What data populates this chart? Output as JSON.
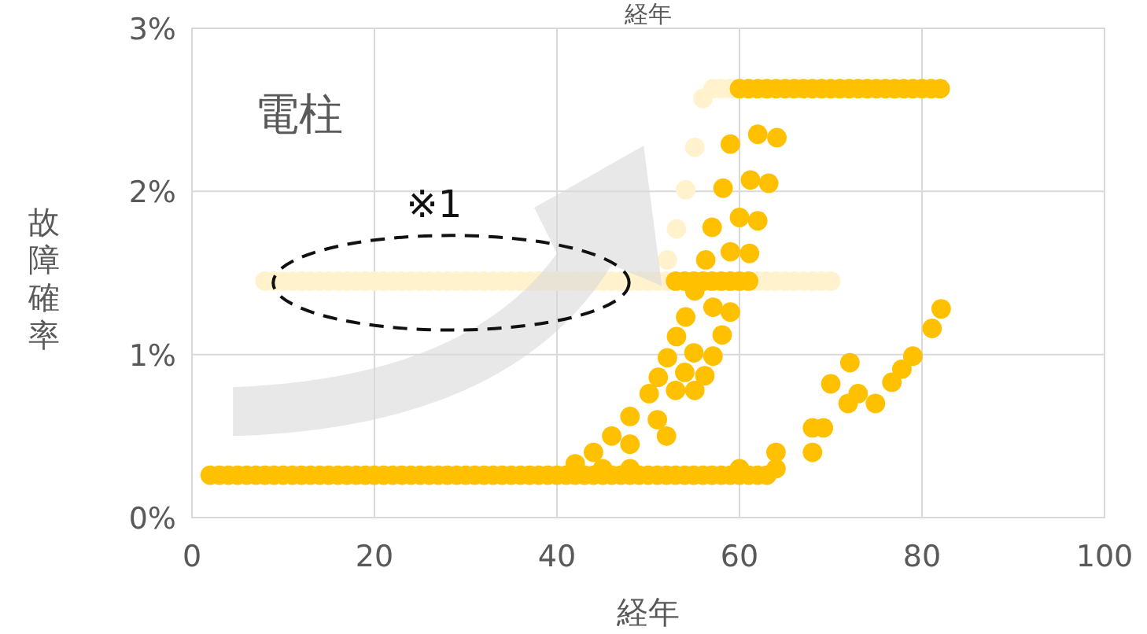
{
  "chart_data": {
    "type": "scatter",
    "title": "経年",
    "xlabel": "経年",
    "ylabel": "故障確率",
    "annotations": [
      "電柱",
      "※1"
    ],
    "xlim": [
      0,
      100
    ],
    "ylim": [
      0,
      3
    ],
    "xticks": [
      0,
      20,
      40,
      60,
      80,
      100
    ],
    "yticks": [
      {
        "value": 0,
        "label": "0%"
      },
      {
        "value": 1,
        "label": "1%"
      },
      {
        "value": 2,
        "label": "2%"
      },
      {
        "value": 3,
        "label": "3%"
      }
    ],
    "grid": true,
    "marker": "circle",
    "series": [
      {
        "color": "#fff2cc",
        "x": [
          8,
          9,
          10,
          11,
          12,
          13,
          14,
          15,
          16,
          17,
          18,
          19,
          20,
          21,
          22,
          23,
          24,
          25,
          26,
          27,
          28,
          29,
          30,
          31,
          32,
          33,
          34,
          35,
          36,
          37,
          38,
          39,
          40,
          41,
          42,
          43,
          44,
          45,
          46,
          47,
          48,
          49,
          50,
          51,
          52,
          62,
          63,
          64,
          65,
          66,
          67,
          68,
          69,
          70,
          52.1,
          53.1,
          54.1,
          55.1,
          56.0,
          57.1,
          58,
          59
        ],
        "values": [
          1.45,
          1.45,
          1.45,
          1.45,
          1.45,
          1.45,
          1.45,
          1.45,
          1.45,
          1.45,
          1.45,
          1.45,
          1.45,
          1.45,
          1.45,
          1.45,
          1.45,
          1.45,
          1.45,
          1.45,
          1.45,
          1.45,
          1.45,
          1.45,
          1.45,
          1.45,
          1.45,
          1.45,
          1.45,
          1.45,
          1.45,
          1.45,
          1.45,
          1.45,
          1.45,
          1.45,
          1.45,
          1.45,
          1.45,
          1.45,
          1.45,
          1.45,
          1.45,
          1.45,
          1.45,
          1.45,
          1.45,
          1.45,
          1.45,
          1.45,
          1.45,
          1.45,
          1.45,
          1.45,
          1.58,
          1.77,
          2.01,
          2.27,
          2.57,
          2.63,
          2.63,
          2.63
        ]
      },
      {
        "color": "#ffc000",
        "x": [
          2,
          3,
          4,
          5,
          6,
          7,
          8,
          9,
          10,
          11,
          12,
          13,
          14,
          15,
          16,
          17,
          18,
          19,
          20,
          21,
          22,
          23,
          24,
          25,
          26,
          27,
          28,
          29,
          30,
          31,
          32,
          33,
          34,
          35,
          36,
          37,
          38,
          39,
          40,
          41,
          42,
          43,
          44,
          45,
          46,
          47,
          48,
          49,
          50,
          51,
          52,
          53,
          54,
          55,
          56,
          57,
          58,
          59,
          60,
          61,
          62,
          63,
          42,
          44,
          46,
          48,
          50.1,
          51.1,
          52.1,
          53.1,
          45,
          48,
          51,
          53.0,
          54.0,
          55.0,
          48,
          52,
          55.1,
          56.2,
          57.1,
          58.1,
          54.1,
          55.1,
          57.1,
          59.0,
          53,
          54,
          55,
          56,
          57,
          58,
          59,
          60,
          61,
          56.3,
          59.0,
          61.1,
          57.0,
          60.0,
          62.0,
          58.2,
          61.2,
          63.2,
          59.0,
          62.0,
          64.1,
          60,
          61,
          62,
          63,
          64,
          65,
          66,
          67,
          68,
          69,
          70,
          71,
          72,
          73,
          74,
          75,
          76,
          77,
          78,
          79,
          80,
          81,
          82,
          60,
          64,
          68,
          69.2,
          70.0,
          72.1,
          64,
          68,
          71.9,
          73.0,
          74.9,
          76.7,
          77.8,
          79.0,
          81.1,
          82.1
        ],
        "values": [
          0.26,
          0.26,
          0.26,
          0.26,
          0.26,
          0.26,
          0.26,
          0.26,
          0.26,
          0.26,
          0.26,
          0.26,
          0.26,
          0.26,
          0.26,
          0.26,
          0.26,
          0.26,
          0.26,
          0.26,
          0.26,
          0.26,
          0.26,
          0.26,
          0.26,
          0.26,
          0.26,
          0.26,
          0.26,
          0.26,
          0.26,
          0.26,
          0.26,
          0.26,
          0.26,
          0.26,
          0.26,
          0.26,
          0.26,
          0.26,
          0.26,
          0.26,
          0.26,
          0.26,
          0.26,
          0.26,
          0.26,
          0.26,
          0.26,
          0.26,
          0.26,
          0.26,
          0.26,
          0.26,
          0.26,
          0.26,
          0.26,
          0.26,
          0.26,
          0.26,
          0.26,
          0.26,
          0.33,
          0.4,
          0.5,
          0.62,
          0.76,
          0.86,
          0.98,
          1.11,
          0.3,
          0.45,
          0.6,
          0.78,
          0.89,
          1.01,
          0.3,
          0.5,
          0.78,
          0.87,
          0.99,
          1.12,
          1.23,
          1.39,
          1.29,
          1.26,
          1.45,
          1.45,
          1.45,
          1.45,
          1.45,
          1.45,
          1.45,
          1.45,
          1.45,
          1.58,
          1.63,
          1.62,
          1.78,
          1.84,
          1.82,
          2.02,
          2.07,
          2.05,
          2.29,
          2.35,
          2.33,
          2.63,
          2.63,
          2.63,
          2.63,
          2.63,
          2.63,
          2.63,
          2.63,
          2.63,
          2.63,
          2.63,
          2.63,
          2.63,
          2.63,
          2.63,
          2.63,
          2.63,
          2.63,
          2.63,
          2.63,
          2.63,
          2.63,
          2.63,
          0.3,
          0.4,
          0.55,
          0.55,
          0.82,
          0.95,
          0.3,
          0.4,
          0.7,
          0.76,
          0.7,
          0.83,
          0.91,
          0.99,
          1.16,
          1.28
        ]
      }
    ]
  }
}
